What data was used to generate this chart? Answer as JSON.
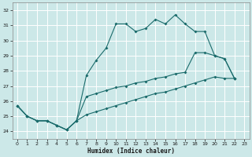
{
  "xlabel": "Humidex (Indice chaleur)",
  "background_color": "#cce8e8",
  "line_color": "#1a6b6b",
  "grid_color": "#b0d0d0",
  "ylim": [
    23.5,
    32.5
  ],
  "xlim": [
    -0.5,
    23.5
  ],
  "xticks": [
    0,
    1,
    2,
    3,
    4,
    5,
    6,
    7,
    8,
    9,
    10,
    11,
    12,
    13,
    14,
    15,
    16,
    17,
    18,
    19,
    20,
    21,
    22,
    23
  ],
  "yticks": [
    24,
    25,
    26,
    27,
    28,
    29,
    30,
    31,
    32
  ],
  "line1_x": [
    0,
    1,
    2,
    3,
    4,
    5,
    6,
    7,
    8,
    9,
    10,
    11,
    12,
    13,
    14,
    15,
    16,
    17,
    18,
    19,
    20,
    21,
    22
  ],
  "line1_y": [
    25.7,
    25.0,
    24.7,
    24.7,
    24.4,
    24.1,
    24.7,
    27.7,
    28.7,
    29.5,
    31.1,
    31.1,
    30.6,
    30.8,
    31.4,
    31.1,
    31.7,
    31.1,
    30.6,
    30.6,
    29.0,
    28.8,
    27.5
  ],
  "line2_x": [
    0,
    1,
    2,
    3,
    4,
    5,
    6,
    7,
    8,
    9,
    10,
    11,
    12,
    13,
    14,
    15,
    16,
    17,
    18,
    19,
    20,
    21,
    22
  ],
  "line2_y": [
    25.7,
    25.0,
    24.7,
    24.7,
    24.4,
    24.1,
    24.7,
    26.3,
    26.5,
    26.7,
    26.9,
    27.0,
    27.2,
    27.3,
    27.5,
    27.6,
    27.8,
    27.9,
    29.2,
    29.2,
    29.0,
    28.8,
    27.5
  ],
  "line3_x": [
    0,
    1,
    2,
    3,
    4,
    5,
    6,
    7,
    8,
    9,
    10,
    11,
    12,
    13,
    14,
    15,
    16,
    17,
    18,
    19,
    20,
    21,
    22
  ],
  "line3_y": [
    25.7,
    25.0,
    24.7,
    24.7,
    24.4,
    24.1,
    24.7,
    25.1,
    25.3,
    25.5,
    25.7,
    25.9,
    26.1,
    26.3,
    26.5,
    26.6,
    26.8,
    27.0,
    27.2,
    27.4,
    27.6,
    27.5,
    27.5
  ]
}
